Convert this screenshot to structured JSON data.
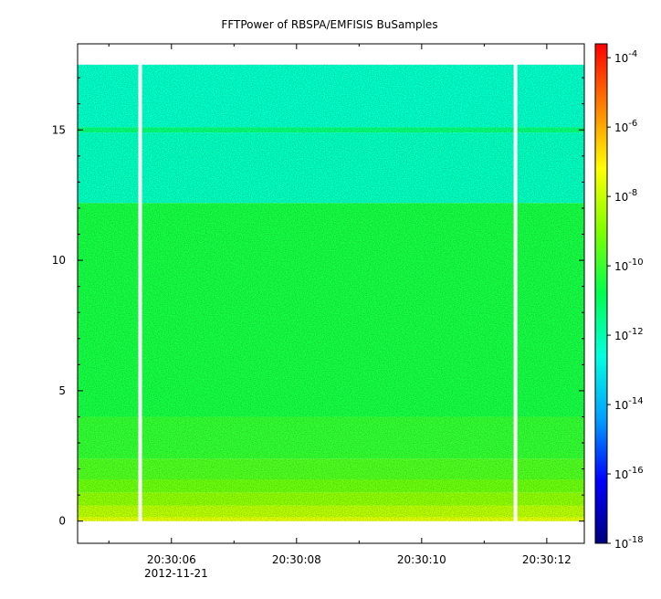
{
  "chart_data": {
    "type": "heatmap",
    "title": "FFTPower of RBSPA/EMFISIS  BuSamples",
    "xlabel": "",
    "ylabel": "",
    "x_ticks": [
      "20:30:06",
      "20:30:08",
      "20:30:10",
      "20:30:12"
    ],
    "x_tick_values": [
      6,
      8,
      10,
      12
    ],
    "x_minor_tick_values": [
      5,
      7,
      9,
      11
    ],
    "x_date_label": "2012-11-21",
    "xlim": [
      4.5,
      12.6
    ],
    "y_ticks": [
      "0",
      "5",
      "10",
      "15"
    ],
    "y_tick_values": [
      0,
      5,
      10,
      15
    ],
    "ylim": [
      -0.85,
      18.3
    ],
    "data_ymax": 17.5,
    "gaps_x": [
      5.5,
      11.5
    ],
    "bands": [
      {
        "y0": 0.0,
        "y1": 0.15,
        "level": -7.6
      },
      {
        "y0": 0.15,
        "y1": 0.6,
        "level": -8.2
      },
      {
        "y0": 0.6,
        "y1": 1.1,
        "level": -8.8
      },
      {
        "y0": 1.1,
        "y1": 1.6,
        "level": -9.3
      },
      {
        "y0": 1.6,
        "y1": 2.4,
        "level": -9.7
      },
      {
        "y0": 2.4,
        "y1": 4.0,
        "level": -10.1
      },
      {
        "y0": 4.0,
        "y1": 12.2,
        "level": -10.5
      },
      {
        "y0": 12.2,
        "y1": 14.9,
        "level": -12.2
      },
      {
        "y0": 14.9,
        "y1": 15.1,
        "level": -11.3
      },
      {
        "y0": 15.1,
        "y1": 17.5,
        "level": -12.3
      }
    ],
    "colorbar": {
      "scale": "log",
      "range": [
        -18,
        -3.6
      ],
      "tick_exponents": [
        -18,
        -16,
        -14,
        -12,
        -10,
        -8,
        -6,
        -4
      ],
      "tick_base": "10"
    }
  }
}
